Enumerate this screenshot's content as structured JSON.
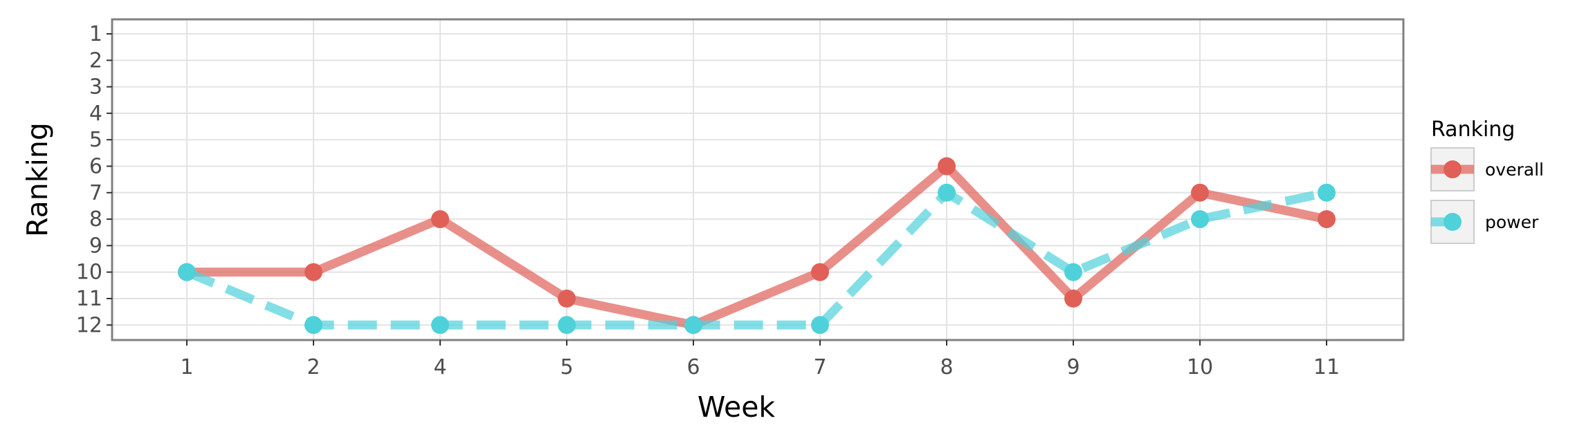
{
  "chart_data": {
    "type": "line",
    "title": "",
    "xlabel": "Week",
    "ylabel": "Ranking",
    "categories": [
      "1",
      "2",
      "4",
      "5",
      "6",
      "7",
      "8",
      "9",
      "10",
      "11"
    ],
    "y_ticks": [
      1,
      2,
      3,
      4,
      5,
      6,
      7,
      8,
      9,
      10,
      11,
      12
    ],
    "y_reversed": true,
    "ylim": [
      12.5,
      0.5
    ],
    "grid": true,
    "legend": {
      "title": "Ranking",
      "position": "right"
    },
    "series": [
      {
        "name": "overall",
        "color": "#e06058",
        "line_style": "solid",
        "values": [
          10,
          10,
          8,
          11,
          12,
          10,
          6,
          11,
          7,
          8
        ]
      },
      {
        "name": "power",
        "color": "#4fd1da",
        "line_style": "dashed",
        "values": [
          10,
          12,
          12,
          12,
          12,
          12,
          7,
          10,
          8,
          7
        ]
      }
    ]
  }
}
